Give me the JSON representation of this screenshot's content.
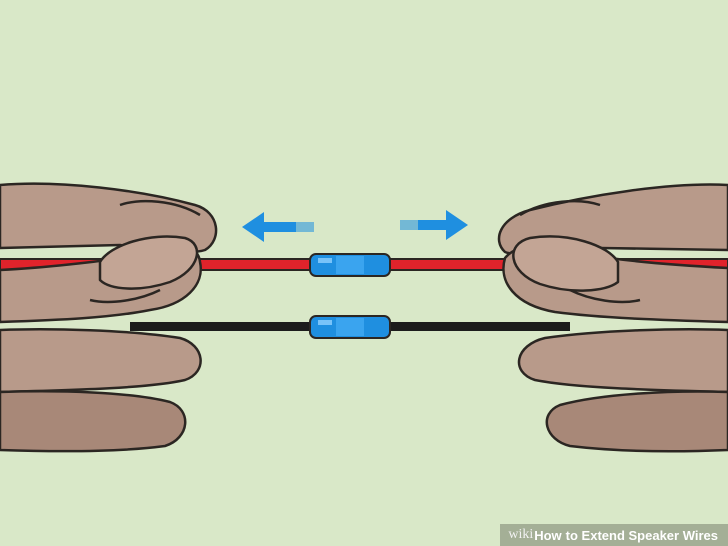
{
  "illustration": {
    "background_color": "#d9e8c8",
    "skin_color": "#b89a8a",
    "skin_shade_color": "#a88878",
    "outline_color": "#2b2622",
    "red_wire_color": "#e0232b",
    "black_wire_color": "#1c1c1c",
    "connector_color": "#1f8fe0",
    "arrow_color": "#1f8fe0",
    "icons": [
      "left-arrow-icon",
      "right-arrow-icon"
    ]
  },
  "watermark": {
    "brand": "wiki",
    "how": "How",
    "title": "to Extend Speaker Wires"
  }
}
